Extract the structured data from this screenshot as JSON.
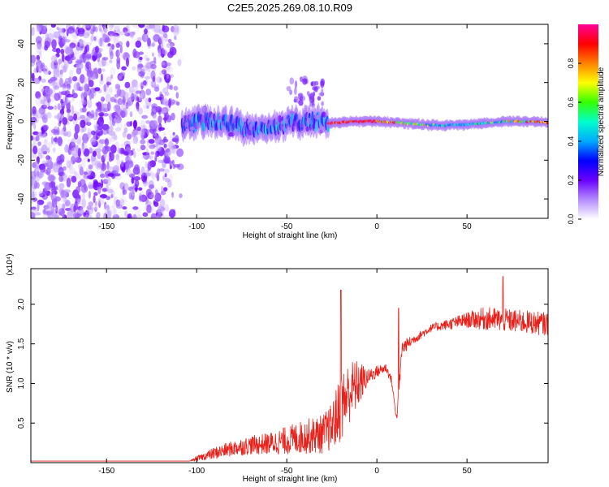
{
  "chart_data": [
    {
      "type": "heatmap",
      "title": "C2E5.2025.269.08.10.R09",
      "xlabel": "Height of straight line (km)",
      "ylabel": "Frequency (Hz)",
      "xlim": [
        -192,
        95
      ],
      "ylim": [
        -50,
        50
      ],
      "xticks": [
        -150,
        -100,
        -50,
        0,
        50
      ],
      "yticks": [
        -40,
        -20,
        0,
        20,
        40
      ],
      "colorbar": {
        "label": "Normalized spectral amplitude",
        "range": [
          0,
          1
        ],
        "ticks": [
          "0.0",
          "0.2",
          "0.4",
          "0.6",
          "0.8"
        ],
        "colors": [
          "#ffffff",
          "#b48cff",
          "#6a00ff",
          "#0000ff",
          "#00aaff",
          "#00ffcc",
          "#33ff00",
          "#ffff00",
          "#ff8000",
          "#ff0000",
          "#ff0099"
        ]
      },
      "regions": [
        {
          "name": "noise",
          "x_range": [
            -192,
            -108
          ],
          "freq_range": [
            -50,
            50
          ],
          "amplitude": [
            0.0,
            0.2
          ]
        },
        {
          "name": "turbulent signal",
          "x_range": [
            -108,
            -27
          ],
          "freq_center": [
            -2,
            2
          ],
          "freq_halfwidth": [
            5,
            8
          ],
          "amplitude": [
            0.2,
            0.5
          ]
        },
        {
          "name": "drift feature",
          "x_range": [
            -50,
            -30
          ],
          "freq_range": [
            8,
            22
          ],
          "amplitude": [
            0.1,
            0.2
          ]
        },
        {
          "name": "steady signal",
          "x_range": [
            -27,
            95
          ],
          "freq_center": [
            -1,
            1
          ],
          "freq_halfwidth": [
            2,
            3
          ],
          "amplitude": [
            0.3,
            0.95
          ]
        }
      ]
    },
    {
      "type": "line",
      "title": "",
      "xlabel": "Height of straight line (km)",
      "ylabel": "SNR (10 * v/v)",
      "yscale_label": "(x10⁴)",
      "xlim": [
        -192,
        95
      ],
      "ylim": [
        0,
        2.45
      ],
      "xticks": [
        -150,
        -100,
        -50,
        0,
        50
      ],
      "yticks": [
        "0.5",
        "1.0",
        "1.5",
        "2.0"
      ],
      "color": "#e8201a",
      "series": [
        {
          "name": "SNR envelope",
          "x": [
            -192,
            -104,
            -100,
            -90,
            -80,
            -70,
            -60,
            -50,
            -40,
            -30,
            -25,
            -20,
            -15,
            -10,
            -5,
            0,
            5,
            8,
            11,
            14,
            20,
            30,
            40,
            50,
            60,
            70,
            80,
            95
          ],
          "y": [
            0.02,
            0.02,
            0.05,
            0.12,
            0.18,
            0.22,
            0.24,
            0.28,
            0.33,
            0.36,
            0.45,
            0.7,
            0.9,
            1.0,
            1.08,
            1.15,
            1.2,
            1.05,
            0.55,
            1.45,
            1.55,
            1.7,
            1.75,
            1.8,
            1.82,
            1.8,
            1.78,
            1.75
          ],
          "amp": [
            0.0,
            0.0,
            0.03,
            0.08,
            0.1,
            0.12,
            0.14,
            0.18,
            0.22,
            0.25,
            0.3,
            0.45,
            0.4,
            0.3,
            0.1,
            0.08,
            0.06,
            0.05,
            0.05,
            0.1,
            0.06,
            0.05,
            0.07,
            0.1,
            0.15,
            0.15,
            0.15,
            0.15
          ]
        }
      ],
      "spikes": [
        {
          "x": -20,
          "y": 2.18
        },
        {
          "x": 12,
          "y": 1.95
        },
        {
          "x": 70,
          "y": 2.35
        }
      ]
    }
  ]
}
